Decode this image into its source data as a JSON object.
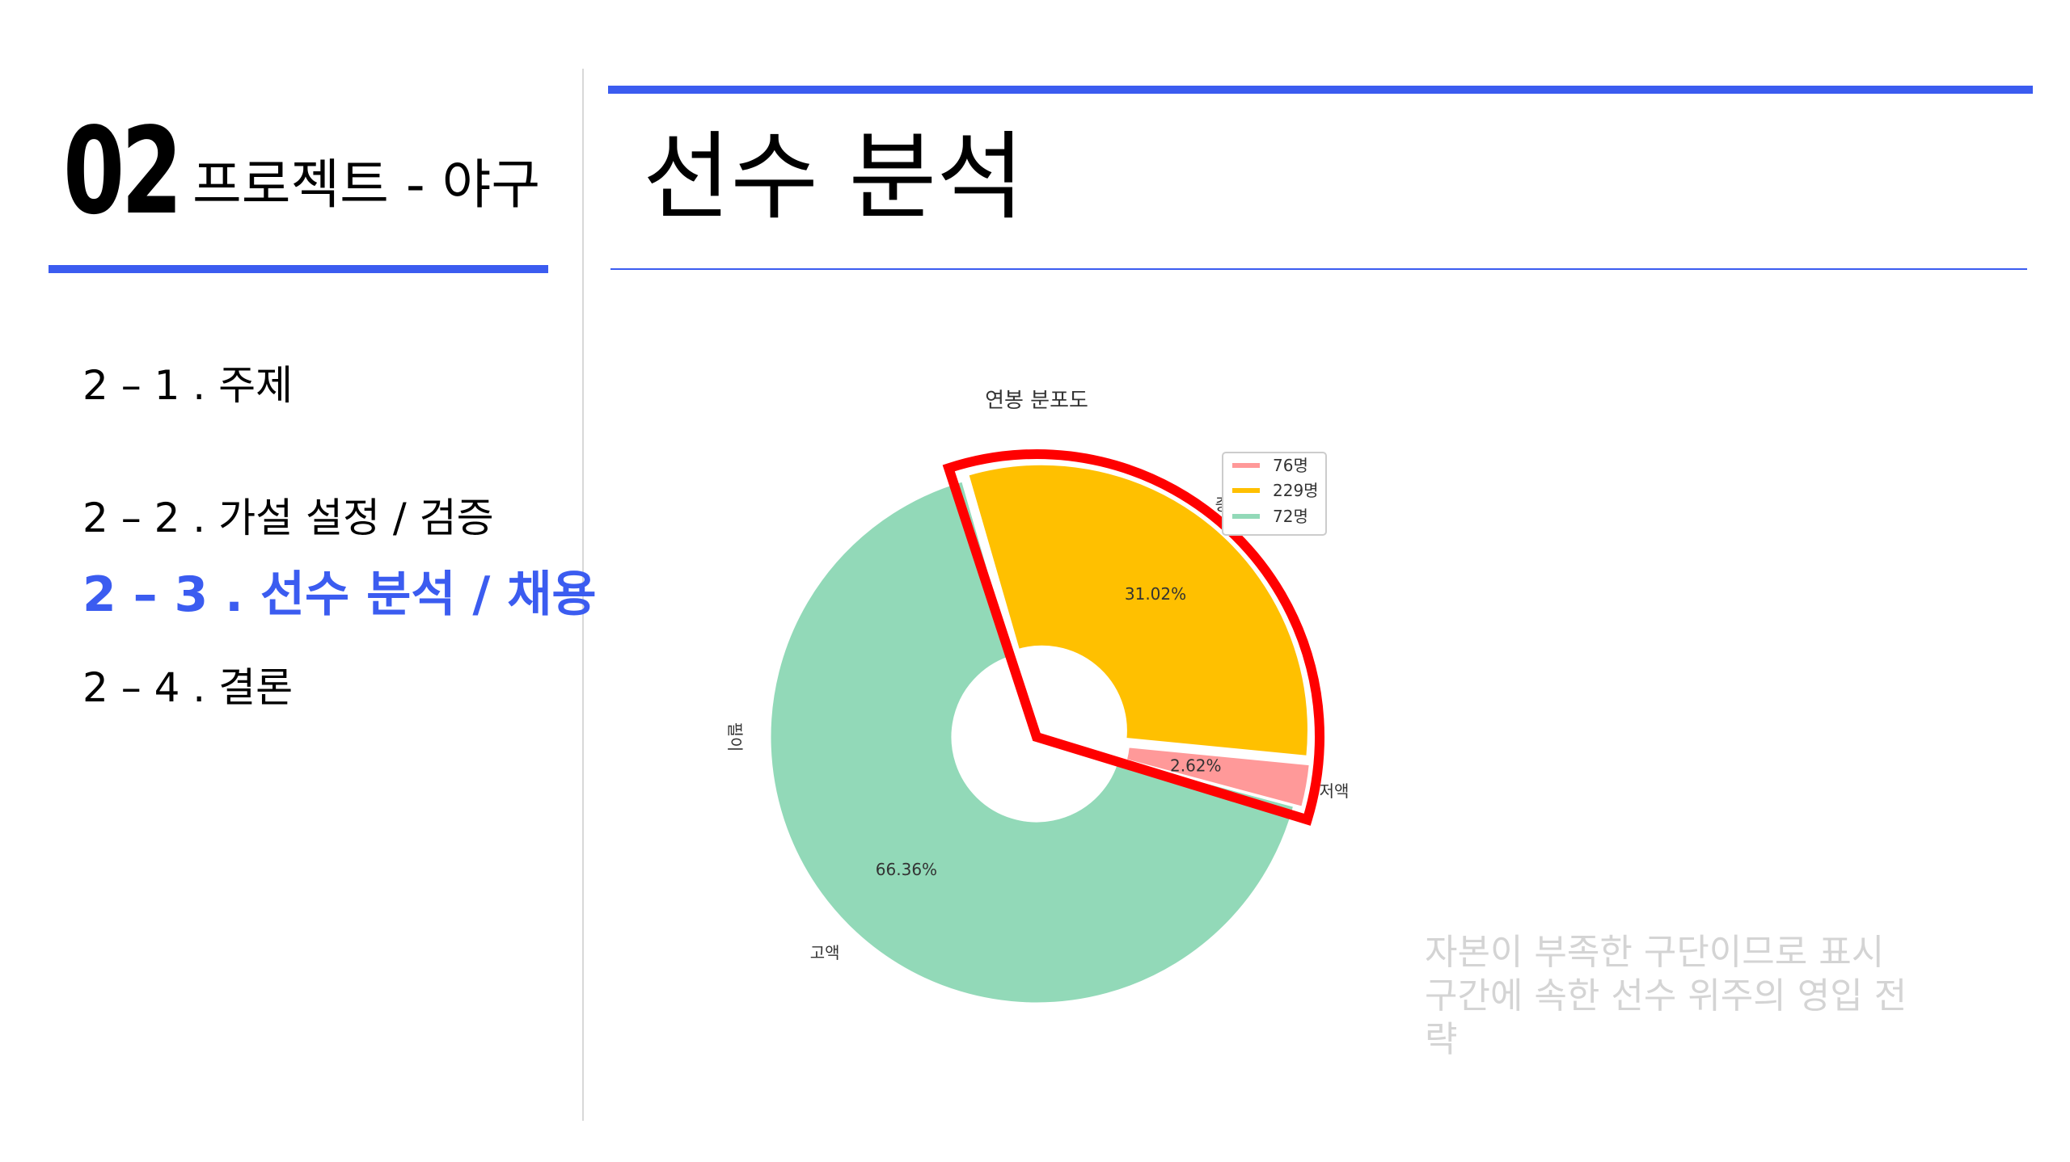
{
  "header": {
    "section_number": "02",
    "section_title": "프로젝트 - 야구",
    "page_title": "선수 분석"
  },
  "nav": {
    "items": [
      {
        "label": "2 – 1 . 주제",
        "active": false
      },
      {
        "label": "2 – 2 . 가설 설정 / 검증",
        "active": false
      },
      {
        "label": "2 – 3 . 선수 분석 / 채용",
        "active": true
      },
      {
        "label": "2 – 4 . 결론",
        "active": false
      }
    ]
  },
  "colors": {
    "accent": "#3b5cf0",
    "highlight": "#ff0000",
    "low": "#ff9999",
    "mid": "#ffc000",
    "high": "#92d9b8"
  },
  "chart_data": {
    "type": "pie",
    "title": "연봉 분포도",
    "donut": true,
    "categories": [
      "저액",
      "중액",
      "고액"
    ],
    "values": [
      2.62,
      31.02,
      66.36
    ],
    "value_labels": [
      "2.62%",
      "31.02%",
      "66.36%"
    ],
    "legend": [
      "76명",
      "229명",
      "72명"
    ],
    "legend_placement": "top-right",
    "highlighted": [
      "저액",
      "중액"
    ],
    "stray_label": "필이"
  },
  "note": {
    "text": "자본이 부족한 구단이므로 표시 구간에 속한 선수 위주의 영입 전략"
  }
}
